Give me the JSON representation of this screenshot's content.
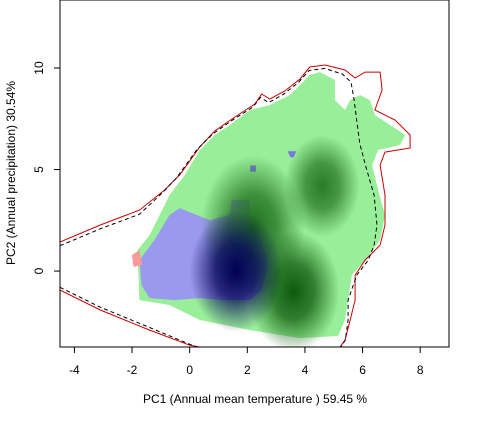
{
  "chart_data": {
    "type": "contour",
    "xlabel": "PC1 (Annual mean temperature ) 59.45 %",
    "ylabel": "PC2 (Annual precipitation) 30.54%",
    "xlim": [
      -4.5,
      9
    ],
    "ylim": [
      -3.74,
      13.35
    ],
    "xticks": [
      -4,
      -2,
      0,
      2,
      4,
      6,
      8
    ],
    "yticks": [
      0,
      5,
      10
    ],
    "regions": [
      {
        "color": "#99ee99",
        "x": [
          -1.74,
          -1.81,
          -1.39,
          -1.04,
          -0.7,
          -0.17,
          0.35,
          0.87,
          1.39,
          2.09,
          2.78,
          3.48,
          3.83,
          4.17,
          4.52,
          5.04,
          5.04,
          5.39,
          5.57,
          5.91,
          6.26,
          6.43,
          6.96,
          7.48,
          7.3,
          6.54,
          6.33,
          6.54,
          6.78,
          6.61,
          6.09,
          5.63,
          5.5,
          5.39,
          5.15,
          3.83,
          2.09,
          0.35,
          -0.7
        ],
        "y": [
          -1.43,
          1.03,
          1.77,
          2.76,
          3.74,
          4.73,
          5.96,
          6.7,
          7.19,
          7.93,
          8.18,
          8.67,
          9.16,
          9.66,
          9.8,
          9.41,
          8.42,
          7.93,
          8.42,
          8.67,
          8.42,
          7.68,
          7.19,
          6.7,
          6.21,
          5.96,
          5.22,
          3.99,
          2.76,
          1.53,
          0.54,
          -0.2,
          -1.43,
          -2.41,
          -3.2,
          -3.3,
          -2.91,
          -2.41,
          -1.67
        ]
      },
      {
        "color": "#9999ee",
        "x": [
          -1.74,
          -1.22,
          -0.7,
          -0.35,
          0.7,
          1.39,
          1.46,
          2.09,
          2.09,
          2.5,
          2.71,
          2.5,
          2.09,
          1.22,
          0.35,
          -0.52,
          -1.39,
          -1.67
        ],
        "y": [
          0.54,
          1.53,
          2.76,
          3.1,
          2.51,
          2.76,
          3.5,
          3.5,
          2.27,
          1.53,
          0.3,
          -0.94,
          -1.43,
          -1.43,
          -1.33,
          -1.43,
          -1.33,
          -0.69
        ]
      },
      {
        "color": "#ff9999",
        "x": [
          -2.0,
          -1.74,
          -1.65,
          -1.95
        ],
        "y": [
          0.79,
          1.03,
          0.3,
          0.2
        ]
      },
      {
        "color": "#7777dd",
        "x": [
          2.1,
          2.3,
          2.3,
          2.1
        ],
        "y": [
          4.9,
          4.9,
          5.2,
          5.2
        ]
      },
      {
        "color": "#7777dd",
        "x": [
          3.4,
          3.7,
          3.6,
          3.5
        ],
        "y": [
          5.9,
          5.9,
          5.6,
          5.6
        ]
      }
    ],
    "blobs": [
      {
        "color": "#1f6f1f",
        "x": 2.2,
        "y": 2.2,
        "rx": 1.8,
        "ry": 3.5
      },
      {
        "color": "#2a7a2a",
        "x": 4.6,
        "y": 4.2,
        "rx": 1.3,
        "ry": 2.5
      },
      {
        "color": "#0d5a0d",
        "x": 3.6,
        "y": -1.0,
        "rx": 1.6,
        "ry": 3.0
      },
      {
        "color": "#000055",
        "x": 1.6,
        "y": 0.0,
        "rx": 1.6,
        "ry": 3.0
      }
    ],
    "lines": [
      {
        "color": "#cc0000",
        "dash": false,
        "x": [
          -4.5,
          -3.1,
          -1.74,
          -0.87,
          -0.35,
          0.35,
          0.87,
          1.57,
          2.26,
          2.5,
          2.78,
          3.3,
          3.83,
          4.17,
          4.7,
          5.39,
          5.74,
          6.09,
          6.61,
          6.68,
          6.43,
          7.13,
          7.65,
          7.65,
          6.78,
          6.61,
          6.78,
          6.78,
          6.61,
          6.09,
          5.74,
          5.74,
          5.57,
          5.39,
          5.22,
          null,
          -4.5,
          -3.1,
          -1.39,
          0.0,
          0.35
        ],
        "y": [
          1.43,
          2.27,
          3.0,
          3.99,
          4.73,
          6.11,
          6.9,
          7.59,
          8.23,
          8.72,
          8.47,
          8.87,
          9.46,
          10.05,
          10.15,
          9.9,
          9.51,
          9.8,
          9.8,
          8.92,
          7.93,
          7.44,
          6.7,
          6.06,
          5.86,
          5.22,
          3.74,
          2.27,
          1.28,
          0.54,
          -0.2,
          -1.43,
          -2.41,
          -3.4,
          -3.74,
          null,
          -0.94,
          -1.92,
          -2.91,
          -3.65,
          -3.74
        ]
      },
      {
        "color": "#000000",
        "dash": true,
        "x": [
          -4.5,
          -3.1,
          -1.74,
          -0.95,
          -0.45,
          0.25,
          0.8,
          1.5,
          2.2,
          2.45,
          2.75,
          3.25,
          3.78,
          4.15,
          4.68,
          5.3,
          5.6,
          5.7,
          5.8,
          5.9,
          6.1,
          6.4,
          6.5,
          6.4,
          6.2,
          5.8,
          5.5,
          5.5,
          5.4,
          5.25,
          5.1,
          null,
          -4.5,
          -3.1,
          -1.39,
          -0.1,
          0.25
        ],
        "y": [
          1.25,
          2.08,
          2.8,
          3.85,
          4.6,
          5.98,
          6.75,
          7.45,
          8.08,
          8.55,
          8.3,
          8.7,
          9.3,
          9.88,
          9.98,
          9.7,
          9.3,
          8.5,
          7.4,
          6.3,
          5.22,
          3.74,
          2.27,
          1.28,
          0.54,
          -0.2,
          -1.43,
          -2.41,
          -3.4,
          -3.74,
          -3.74,
          null,
          -0.8,
          -1.78,
          -2.78,
          -3.55,
          -3.74
        ]
      }
    ]
  }
}
